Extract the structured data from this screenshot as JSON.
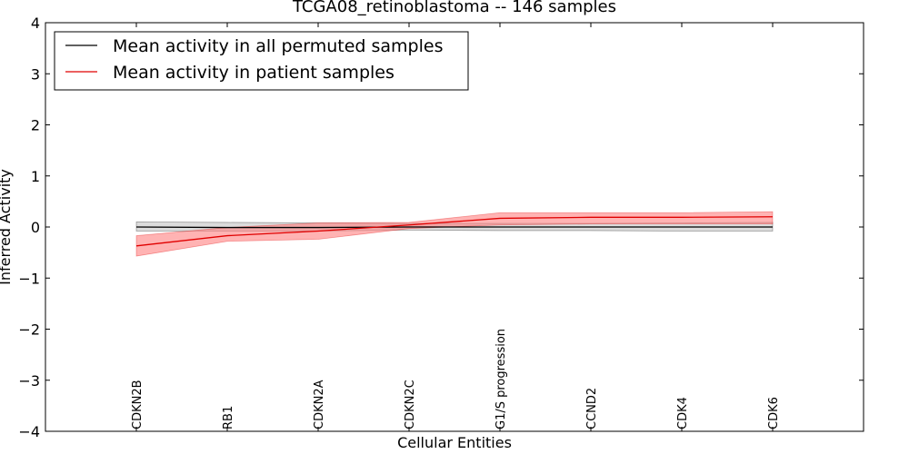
{
  "chart_data": {
    "type": "line",
    "title": "TCGA08_retinoblastoma -- 146 samples",
    "xlabel": "Cellular Entities",
    "ylabel": "Inferred Activity",
    "ylim": [
      -4,
      4
    ],
    "yticks": [
      4,
      3,
      2,
      1,
      0,
      -1,
      -2,
      -3,
      -4
    ],
    "ytick_labels": [
      "4",
      "3",
      "2",
      "1",
      "0",
      "−1",
      "−2",
      "−3",
      "−4"
    ],
    "categories": [
      "CDKN2B",
      "RB1",
      "CDKN2A",
      "CDKN2C",
      "G1/S progression",
      "CCND2",
      "CDK4",
      "CDK6"
    ],
    "series": [
      {
        "name": "Mean activity in all permuted samples",
        "color": "#000000",
        "band_color": "#bfbfbf",
        "values": [
          0.0,
          -0.01,
          -0.01,
          0.0,
          0.0,
          0.0,
          0.0,
          0.0
        ],
        "upper": [
          0.1,
          0.09,
          0.08,
          0.07,
          0.07,
          0.07,
          0.08,
          0.09
        ],
        "lower": [
          -0.08,
          -0.08,
          -0.08,
          -0.06,
          -0.07,
          -0.07,
          -0.08,
          -0.08
        ]
      },
      {
        "name": "Mean activity in patient samples",
        "color": "#e00000",
        "band_color": "#ff8080",
        "values": [
          -0.37,
          -0.17,
          -0.08,
          0.04,
          0.17,
          0.19,
          0.19,
          0.2
        ],
        "upper": [
          -0.17,
          -0.01,
          0.08,
          0.09,
          0.28,
          0.28,
          0.28,
          0.3
        ],
        "lower": [
          -0.57,
          -0.28,
          -0.24,
          -0.03,
          0.04,
          0.06,
          0.06,
          0.06
        ]
      }
    ],
    "legend": "top-left"
  }
}
